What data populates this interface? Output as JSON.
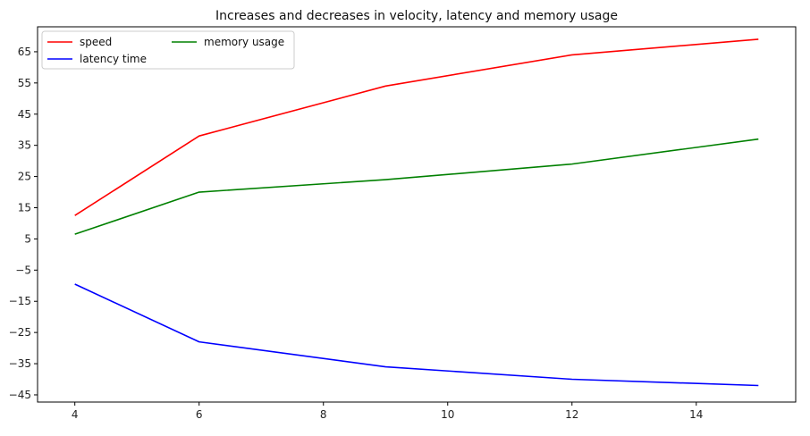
{
  "chart_data": {
    "type": "line",
    "title": "Increases and decreases in velocity, latency and memory usage",
    "xlabel": "",
    "ylabel": "",
    "xlim": [
      3.4,
      15.6
    ],
    "ylim": [
      -47.3,
      73.0
    ],
    "xticks": [
      4,
      6,
      8,
      10,
      12,
      14
    ],
    "xtick_labels": [
      "4",
      "6",
      "8",
      "10",
      "12",
      "14"
    ],
    "yticks": [
      65,
      55,
      45,
      35,
      25,
      15,
      5,
      -5,
      -15,
      -25,
      -35,
      -45
    ],
    "ytick_labels": [
      "65",
      "55",
      "45",
      "35",
      "25",
      "15",
      "5",
      "−5",
      "−15",
      "−25",
      "−35",
      "−45"
    ],
    "grid": false,
    "legend": {
      "position": "top-left",
      "columns": 2
    },
    "x": [
      4,
      6,
      9,
      12,
      15
    ],
    "series": [
      {
        "name": "speed",
        "color": "#ff0000",
        "values": [
          12.5,
          38,
          54,
          64,
          69
        ]
      },
      {
        "name": "latency time",
        "color": "#0000ff",
        "values": [
          -9.5,
          -28,
          -36,
          -40,
          -42
        ]
      },
      {
        "name": "memory usage",
        "color": "#008000",
        "values": [
          6.5,
          20,
          24,
          29,
          37
        ]
      }
    ]
  }
}
